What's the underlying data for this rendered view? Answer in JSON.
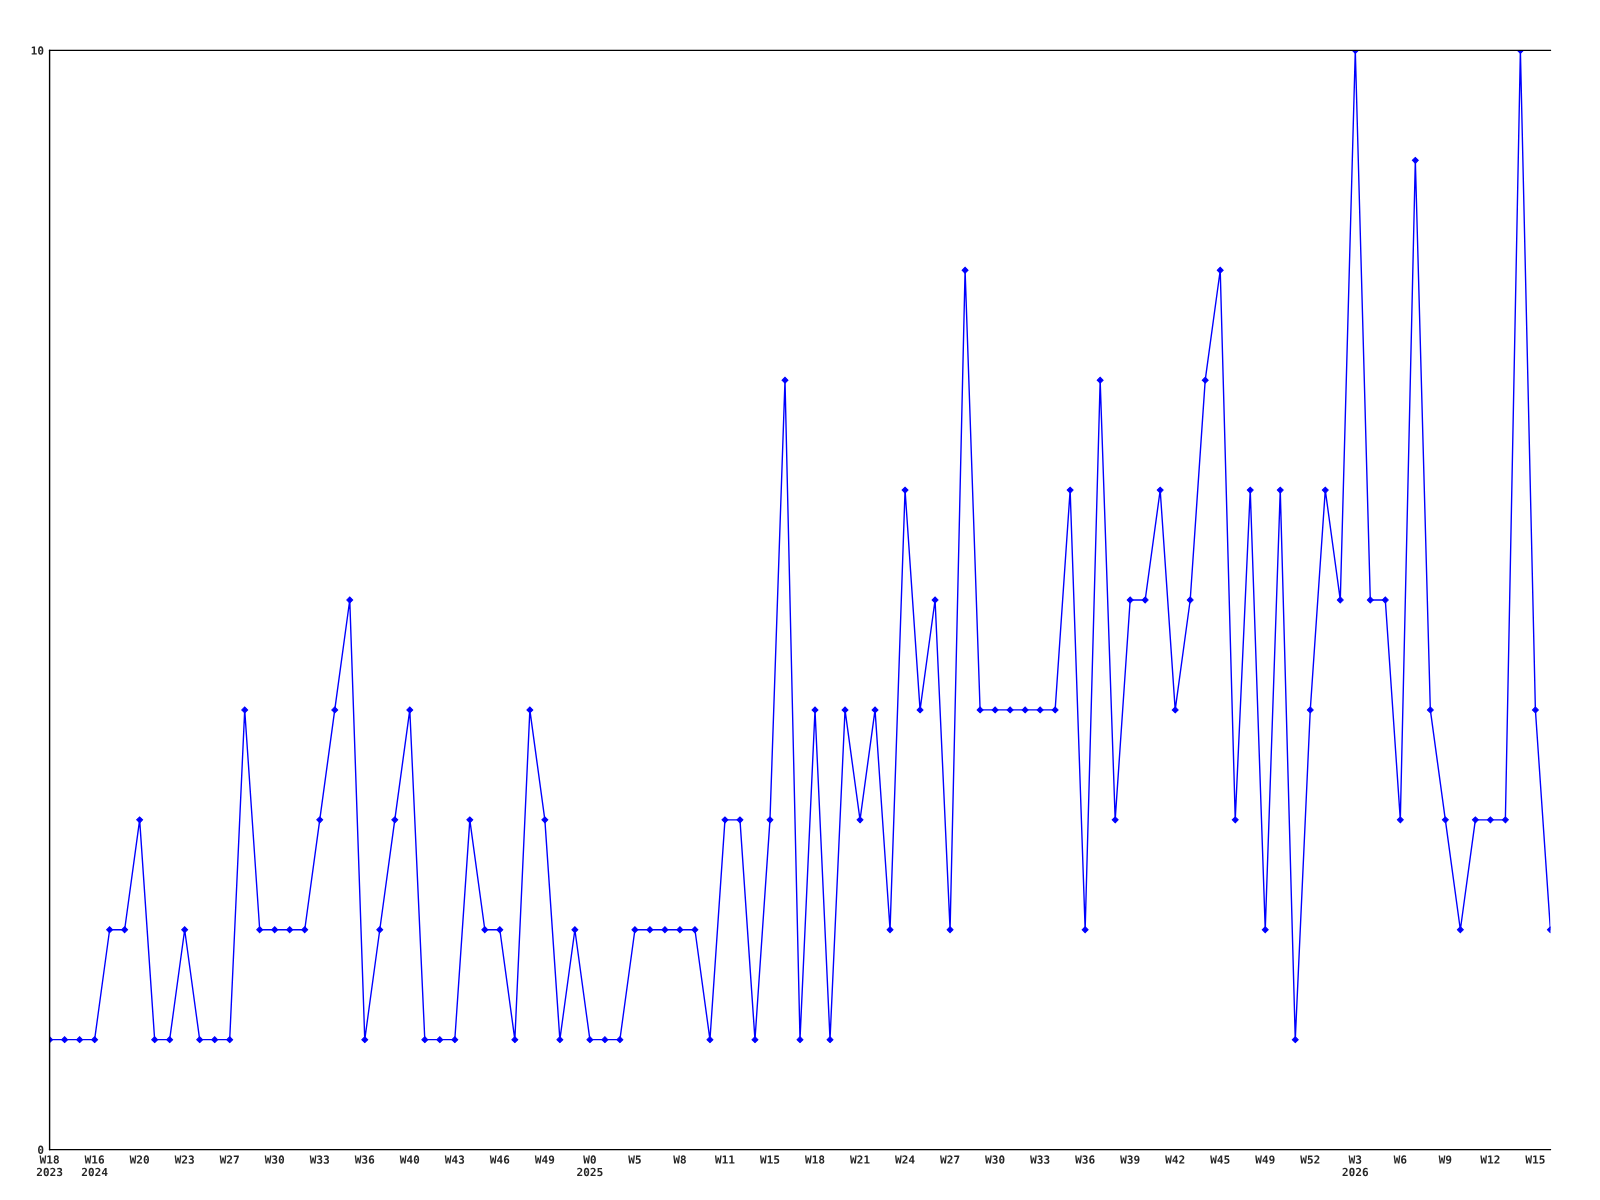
{
  "chart_data": {
    "type": "line",
    "categories": [
      "W18\n2023",
      null,
      null,
      "W16\n2024",
      null,
      null,
      "W20",
      null,
      null,
      "W23",
      null,
      null,
      "W27",
      null,
      null,
      "W30",
      null,
      null,
      "W33",
      null,
      null,
      "W36",
      null,
      null,
      "W40",
      null,
      null,
      "W43",
      null,
      null,
      "W46",
      null,
      null,
      "W49",
      null,
      null,
      "W0\n2025",
      null,
      null,
      "W5",
      null,
      null,
      "W8",
      null,
      null,
      "W11",
      null,
      null,
      "W15",
      null,
      null,
      "W18",
      null,
      null,
      "W21",
      null,
      null,
      "W24",
      null,
      null,
      "W27",
      null,
      null,
      "W30",
      null,
      null,
      "W33",
      null,
      null,
      "W36",
      null,
      null,
      "W39",
      null,
      null,
      "W42",
      null,
      null,
      "W45",
      null,
      null,
      "W49",
      null,
      null,
      "W52",
      null,
      null,
      "W3\n2026",
      null,
      null,
      "W6",
      null,
      null,
      "W9",
      null,
      null,
      "W12",
      null,
      null,
      "W15",
      null
    ],
    "series": [
      {
        "color": "#0000ff",
        "values": [
          1,
          1,
          1,
          1,
          2,
          2,
          3,
          1,
          1,
          2,
          1,
          1,
          1,
          4,
          2,
          2,
          2,
          2,
          3,
          4,
          5,
          1,
          2,
          3,
          4,
          1,
          1,
          1,
          3,
          2,
          2,
          1,
          4,
          3,
          1,
          2,
          1,
          1,
          1,
          2,
          2,
          2,
          2,
          2,
          1,
          3,
          3,
          1,
          3,
          7,
          1,
          4,
          1,
          4,
          3,
          4,
          2,
          6,
          4,
          5,
          2,
          8,
          4,
          4,
          4,
          4,
          4,
          4,
          6,
          2,
          7,
          3,
          5,
          5,
          6,
          4,
          5,
          7,
          8,
          3,
          6,
          2,
          6,
          1,
          4,
          6,
          5,
          10,
          5,
          5,
          3,
          9,
          4,
          3,
          2,
          3,
          3,
          3,
          10,
          4,
          2
        ]
      }
    ],
    "ylim": [
      0,
      10
    ],
    "yticks": [
      0,
      10
    ],
    "grid": false,
    "marker": "diamond",
    "line_style": "solid"
  }
}
